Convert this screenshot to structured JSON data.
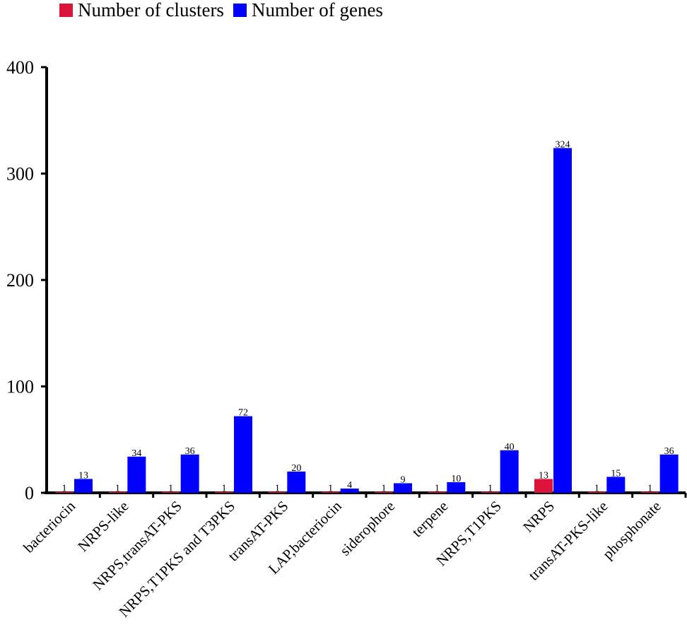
{
  "chart_data": {
    "type": "bar",
    "categories": [
      "bacteriocin",
      "NRPS-like",
      "NRPS,transAT-PKS",
      "NRPS,T1PKS and T3PKS",
      "transAT-PKS",
      "LAP,bacteriocin",
      "siderophore",
      "terpene",
      "NRPS,T1PKS",
      "NRPS",
      "transAT-PKS-like",
      "phosphonate"
    ],
    "series": [
      {
        "name": "Number of clusters",
        "color": "#dc143c",
        "values": [
          1,
          1,
          1,
          1,
          1,
          1,
          1,
          1,
          1,
          13,
          1,
          1
        ]
      },
      {
        "name": "Number of genes",
        "color": "#0000ff",
        "values": [
          13,
          34,
          36,
          72,
          20,
          4,
          9,
          10,
          40,
          324,
          15,
          36
        ]
      }
    ],
    "yticks": [
      0,
      100,
      200,
      300,
      400
    ],
    "ylim": [
      0,
      400
    ],
    "xlabel": "",
    "ylabel": "",
    "title": "",
    "grid": false,
    "legend_position": "top",
    "data_labels": true
  }
}
